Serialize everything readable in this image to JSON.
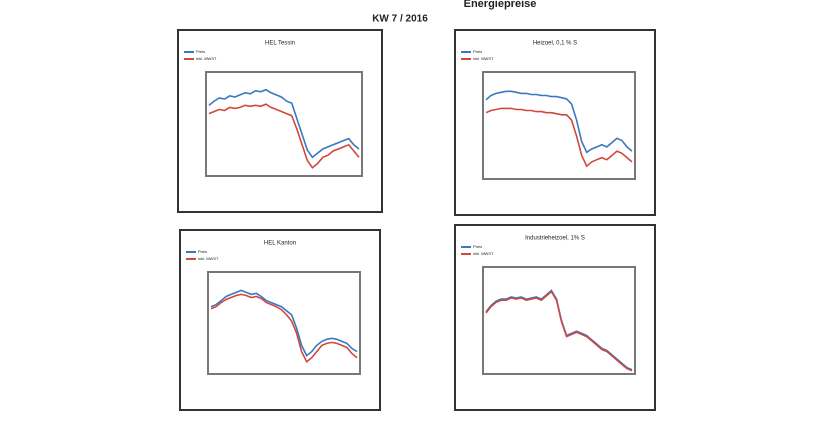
{
  "header": {
    "title": "Energiepreise",
    "subtitle": "KW 7 / 2016"
  },
  "chart_data": [
    {
      "type": "line",
      "title": "HEL Tessin",
      "ylim": [
        0,
        100
      ],
      "series": [
        {
          "name": "Preis",
          "color": "#3a78c3",
          "values": [
            68,
            72,
            75,
            74,
            77,
            76,
            78,
            80,
            79,
            82,
            81,
            83,
            80,
            78,
            76,
            72,
            70,
            55,
            40,
            25,
            18,
            22,
            26,
            28,
            30,
            32,
            34,
            36,
            30,
            26
          ]
        },
        {
          "name": "inkl. MWST",
          "color": "#d2473c",
          "values": [
            60,
            62,
            64,
            63,
            66,
            65,
            66,
            68,
            67,
            68,
            67,
            69,
            66,
            64,
            62,
            60,
            58,
            45,
            30,
            15,
            8,
            12,
            18,
            20,
            24,
            26,
            28,
            30,
            24,
            18
          ]
        }
      ]
    },
    {
      "type": "line",
      "title": "Heizoel, 0,1 % S",
      "ylim": [
        0,
        100
      ],
      "series": [
        {
          "name": "Preis",
          "color": "#3a78c3",
          "values": [
            74,
            78,
            80,
            81,
            82,
            82,
            81,
            80,
            80,
            79,
            79,
            78,
            78,
            77,
            77,
            76,
            75,
            70,
            55,
            35,
            25,
            28,
            30,
            32,
            30,
            34,
            38,
            36,
            30,
            26
          ]
        },
        {
          "name": "inkl. MWST",
          "color": "#d2473c",
          "values": [
            62,
            64,
            65,
            66,
            66,
            66,
            65,
            65,
            64,
            64,
            63,
            63,
            62,
            62,
            61,
            60,
            60,
            55,
            40,
            22,
            12,
            16,
            18,
            20,
            18,
            22,
            26,
            24,
            20,
            16
          ]
        }
      ]
    },
    {
      "type": "line",
      "title": "HEL Kanton",
      "ylim": [
        0,
        100
      ],
      "series": [
        {
          "name": "Preis",
          "color": "#3a78c3",
          "values": [
            66,
            68,
            72,
            76,
            78,
            80,
            82,
            80,
            78,
            79,
            76,
            72,
            70,
            68,
            66,
            62,
            58,
            45,
            28,
            18,
            22,
            28,
            32,
            34,
            35,
            34,
            32,
            30,
            25,
            22
          ]
        },
        {
          "name": "inkl. MWST",
          "color": "#d2473c",
          "values": [
            64,
            66,
            70,
            73,
            75,
            77,
            78,
            77,
            75,
            76,
            74,
            70,
            68,
            66,
            63,
            58,
            52,
            40,
            22,
            12,
            16,
            22,
            28,
            30,
            31,
            30,
            28,
            26,
            20,
            16
          ]
        }
      ]
    },
    {
      "type": "line",
      "title": "Industrieheizoel, 1% S",
      "ylim": [
        0,
        100
      ],
      "series": [
        {
          "name": "Preis",
          "color": "#3a78c3",
          "values": [
            58,
            64,
            68,
            70,
            70,
            72,
            71,
            72,
            70,
            71,
            72,
            70,
            74,
            78,
            70,
            50,
            36,
            38,
            40,
            38,
            36,
            32,
            28,
            24,
            22,
            18,
            14,
            10,
            6,
            4
          ]
        },
        {
          "name": "inkl. MWST",
          "color": "#d2473c",
          "values": [
            57,
            63,
            67,
            69,
            69,
            71,
            70,
            71,
            69,
            70,
            71,
            69,
            73,
            77,
            69,
            49,
            35,
            37,
            39,
            37,
            35,
            31,
            27,
            23,
            21,
            17,
            13,
            9,
            5,
            3
          ]
        }
      ]
    }
  ]
}
